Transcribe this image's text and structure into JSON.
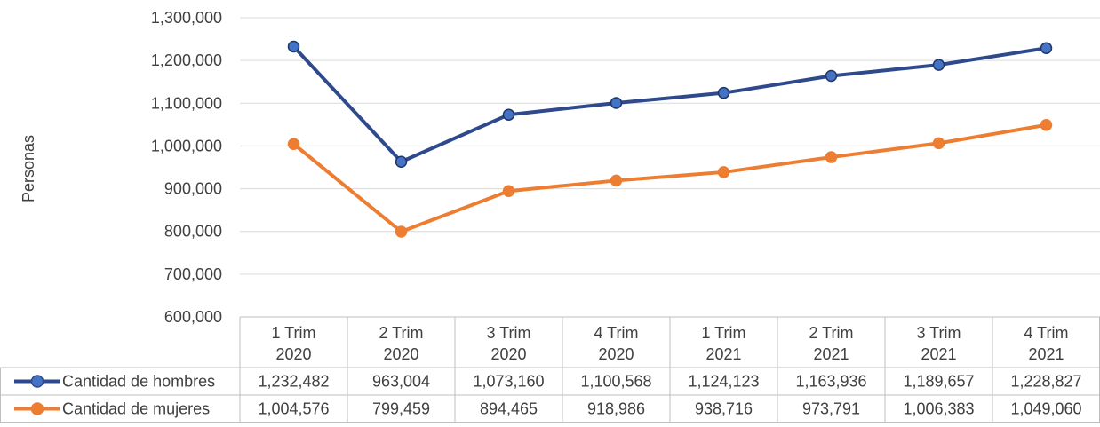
{
  "chart_data": {
    "type": "line",
    "ylabel": "Personas",
    "ylim": [
      600000,
      1300000
    ],
    "y_ticks": [
      "600,000",
      "700,000",
      "800,000",
      "900,000",
      "1,000,000",
      "1,100,000",
      "1,200,000",
      "1,300,000"
    ],
    "y_tick_values": [
      600000,
      700000,
      800000,
      900000,
      1000000,
      1100000,
      1200000,
      1300000
    ],
    "categories": [
      [
        "1 Trim",
        "2020"
      ],
      [
        "2 Trim",
        "2020"
      ],
      [
        "3 Trim",
        "2020"
      ],
      [
        "4 Trim",
        "2020"
      ],
      [
        "1 Trim",
        "2021"
      ],
      [
        "2 Trim",
        "2021"
      ],
      [
        "3 Trim",
        "2021"
      ],
      [
        "4 Trim",
        "2021"
      ]
    ],
    "grid": true,
    "legend": "data-table",
    "series": [
      {
        "name": "Cantidad de hombres",
        "color": "#2E4A8C",
        "marker_color": "#4472C4",
        "values": [
          1232482,
          963004,
          1073160,
          1100568,
          1124123,
          1163936,
          1189657,
          1228827
        ],
        "labels": [
          "1,232,482",
          "963,004",
          "1,073,160",
          "1,100,568",
          "1,124,123",
          "1,163,936",
          "1,189,657",
          "1,228,827"
        ]
      },
      {
        "name": "Cantidad de mujeres",
        "color": "#ED7D31",
        "marker_color": "#ED7D31",
        "values": [
          1004576,
          799459,
          894465,
          918986,
          938716,
          973791,
          1006383,
          1049060
        ],
        "labels": [
          "1,004,576",
          "799,459",
          "894,465",
          "918,986",
          "938,716",
          "973,791",
          "1,006,383",
          "1,049,060"
        ]
      }
    ]
  }
}
